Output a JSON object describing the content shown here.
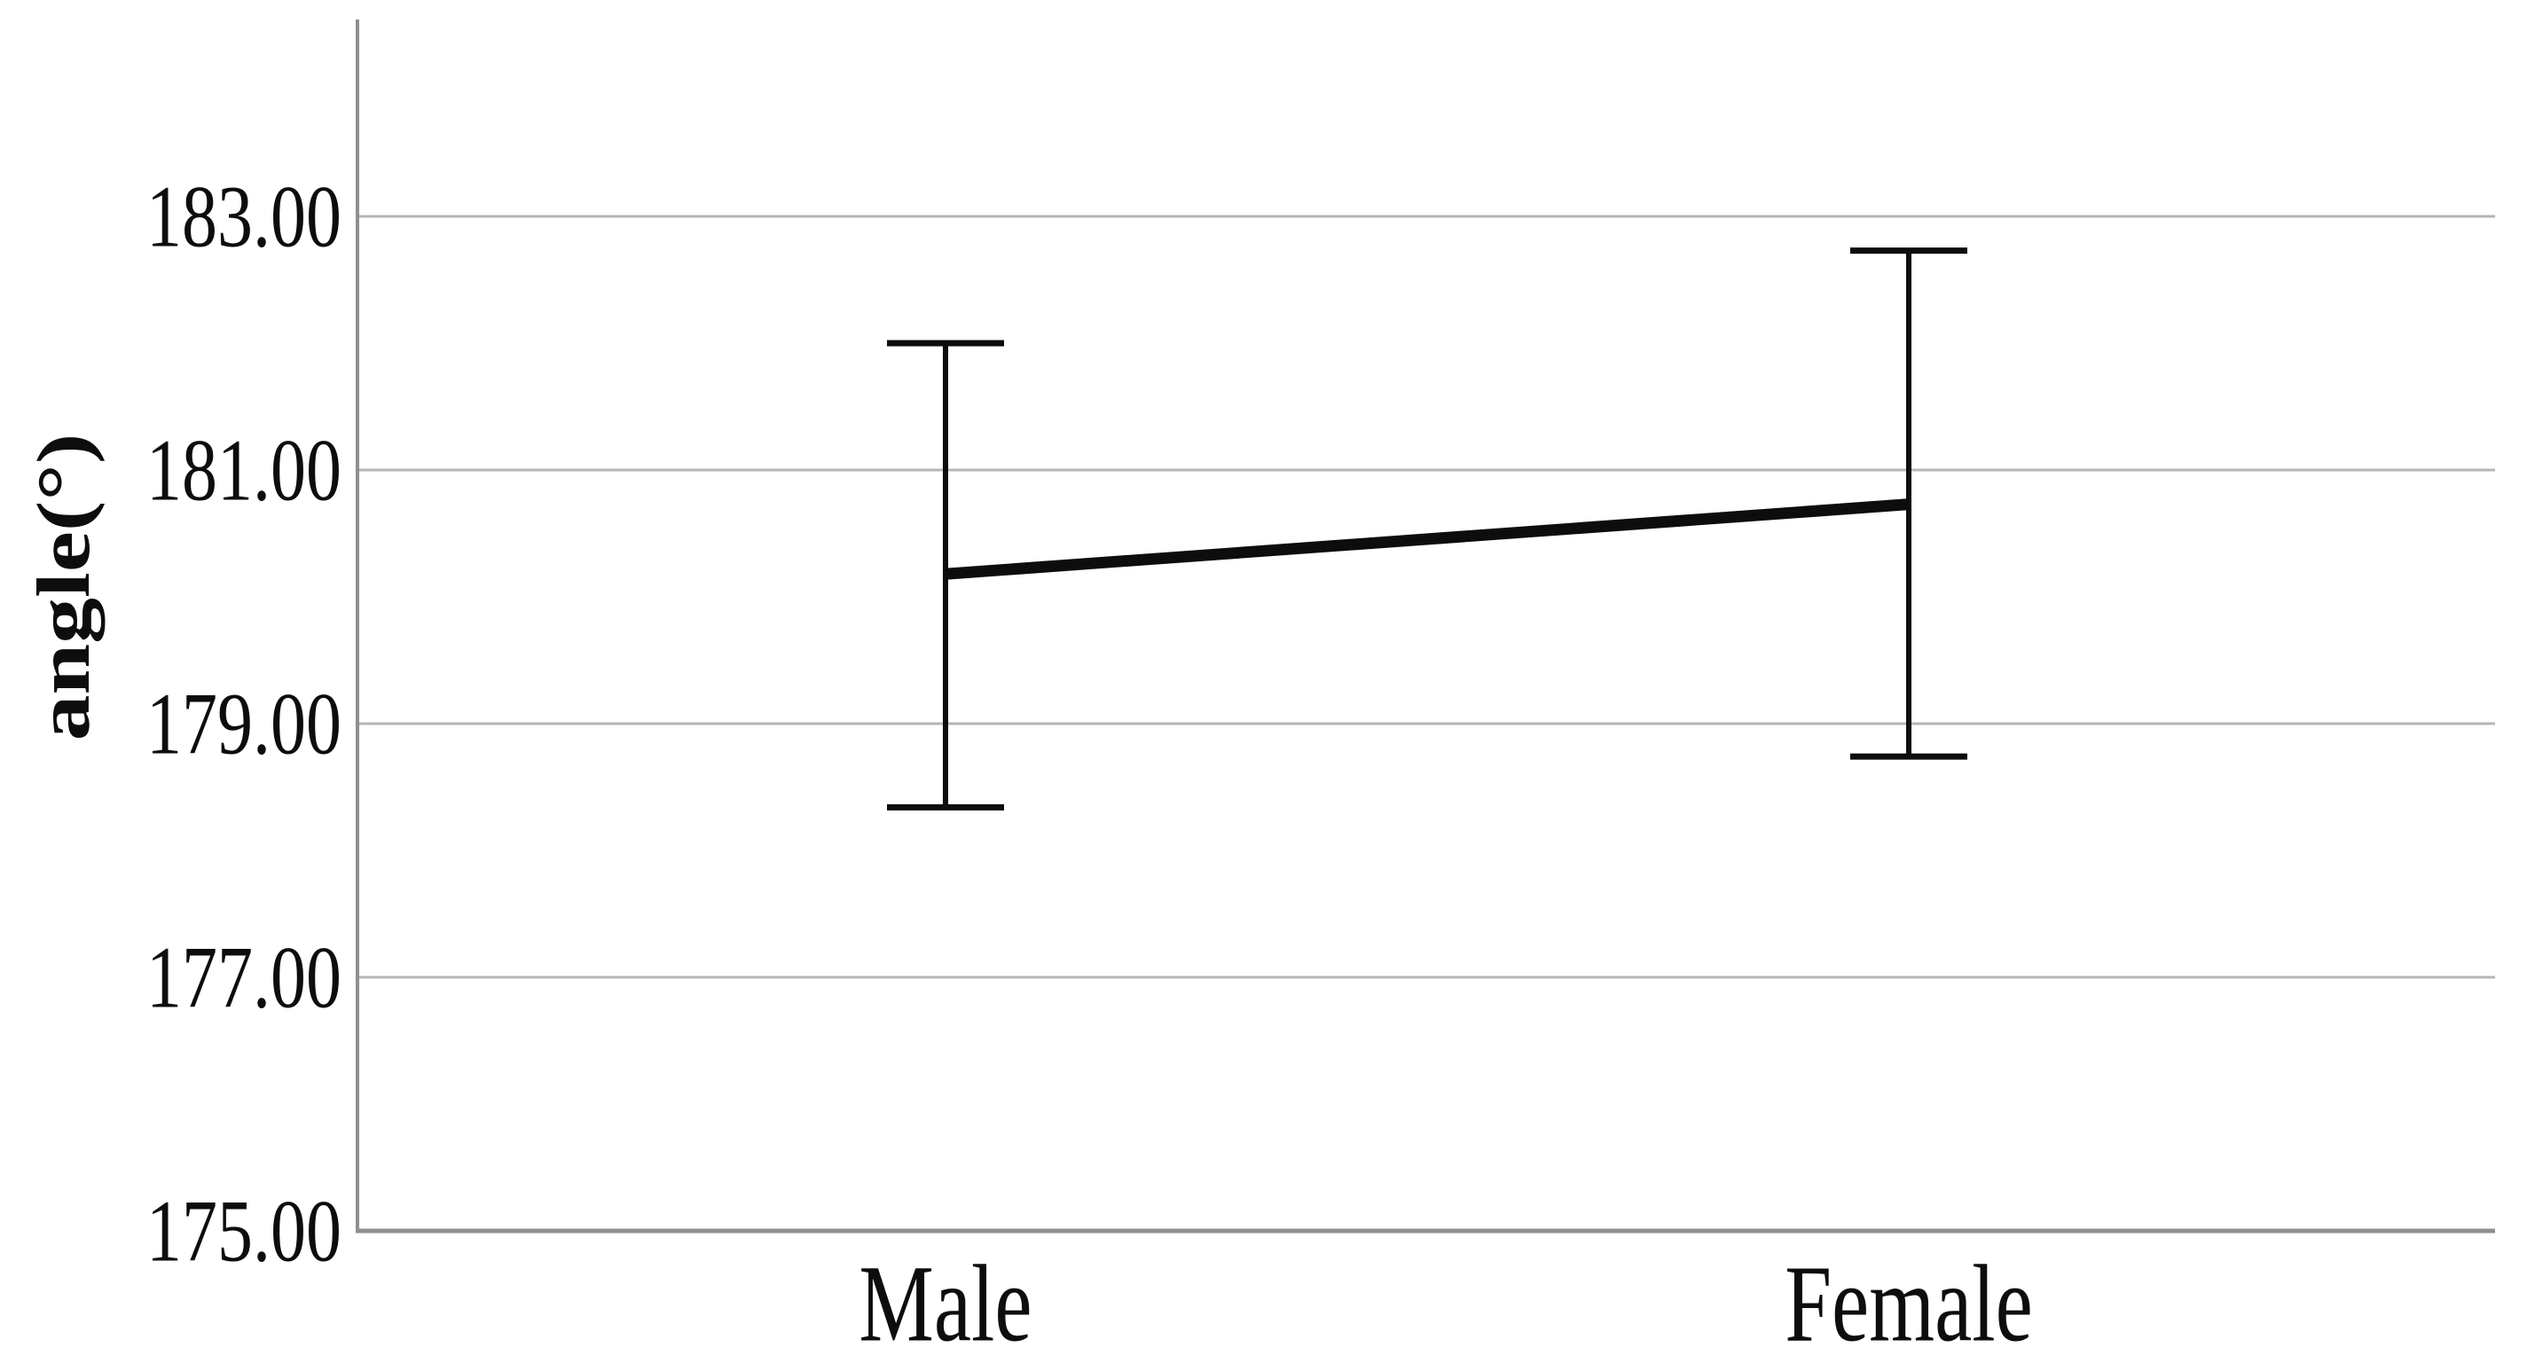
{
  "chart_data": {
    "type": "line",
    "title": "",
    "xlabel": "",
    "ylabel": "angle(°)",
    "categories": [
      "Male",
      "Female"
    ],
    "series": [
      {
        "name": "angle",
        "means": [
          180.18,
          180.73
        ],
        "ci_upper": [
          182.0,
          182.73
        ],
        "ci_lower": [
          178.34,
          178.74
        ]
      }
    ],
    "error_bars": true,
    "ytick_labels": [
      "183.00",
      "181.00",
      "179.00",
      "177.00",
      "175.00"
    ],
    "ytick_values": [
      183,
      181,
      179,
      177,
      175
    ],
    "ylim": [
      175,
      184.6
    ],
    "grid": "horizontal",
    "legend": "none",
    "colors": {
      "line": "#0d0d0d",
      "gridline": "#b5b5b5",
      "axis": "#8f8f8f",
      "text": "#0d0d0d",
      "background": "#ffffff"
    }
  }
}
